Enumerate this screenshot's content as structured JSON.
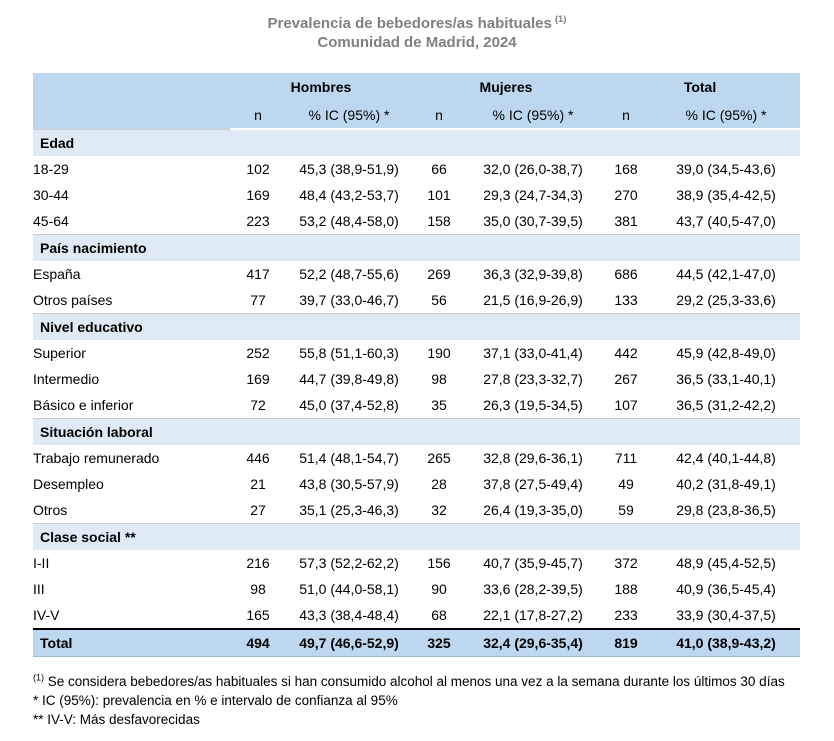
{
  "title": {
    "line1": "Prevalencia de bebedores/as habituales",
    "line1_superscript": "(1)",
    "line2": "Comunidad de Madrid, 2024"
  },
  "colors": {
    "header_blue": "#bdd7ee",
    "section_blue": "#deeaf6",
    "title_gray": "#808080"
  },
  "table": {
    "group_headers": {
      "hombres": "Hombres",
      "mujeres": "Mujeres",
      "total": "Total"
    },
    "sub_headers": {
      "n": "n",
      "pct": "% IC (95%) *"
    },
    "sections": [
      {
        "label": "Edad",
        "rows": [
          {
            "label": "18-29",
            "values": [
              "102",
              "45,3 (38,9-51,9)",
              "66",
              "32,0 (26,0-38,7)",
              "168",
              "39,0 (34,5-43,6)"
            ]
          },
          {
            "label": "30-44",
            "values": [
              "169",
              "48,4 (43,2-53,7)",
              "101",
              "29,3 (24,7-34,3)",
              "270",
              "38,9 (35,4-42,5)"
            ]
          },
          {
            "label": "45-64",
            "values": [
              "223",
              "53,2 (48,4-58,0)",
              "158",
              "35,0 (30,7-39,5)",
              "381",
              "43,7 (40,5-47,0)"
            ]
          }
        ]
      },
      {
        "label": "País nacimiento",
        "rows": [
          {
            "label": "España",
            "values": [
              "417",
              "52,2 (48,7-55,6)",
              "269",
              "36,3 (32,9-39,8)",
              "686",
              "44,5 (42,1-47,0)"
            ]
          },
          {
            "label": "Otros países",
            "values": [
              "77",
              "39,7 (33,0-46,7)",
              "56",
              "21,5 (16,9-26,9)",
              "133",
              "29,2 (25,3-33,6)"
            ]
          }
        ]
      },
      {
        "label": "Nivel educativo",
        "rows": [
          {
            "label": "Superior",
            "values": [
              "252",
              "55,8 (51,1-60,3)",
              "190",
              "37,1 (33,0-41,4)",
              "442",
              "45,9 (42,8-49,0)"
            ]
          },
          {
            "label": "Intermedio",
            "values": [
              "169",
              "44,7 (39,8-49,8)",
              "98",
              "27,8 (23,3-32,7)",
              "267",
              "36,5 (33,1-40,1)"
            ]
          },
          {
            "label": "Básico e inferior",
            "values": [
              "72",
              "45,0 (37,4-52,8)",
              "35",
              "26,3 (19,5-34,5)",
              "107",
              "36,5 (31,2-42,2)"
            ]
          }
        ]
      },
      {
        "label": "Situación laboral",
        "rows": [
          {
            "label": "Trabajo remunerado",
            "values": [
              "446",
              "51,4 (48,1-54,7)",
              "265",
              "32,8 (29,6-36,1)",
              "711",
              "42,4 (40,1-44,8)"
            ]
          },
          {
            "label": "Desempleo",
            "values": [
              "21",
              "43,8 (30,5-57,9)",
              "28",
              "37,8 (27,5-49,4)",
              "49",
              "40,2 (31,8-49,1)"
            ]
          },
          {
            "label": "Otros",
            "values": [
              "27",
              "35,1 (25,3-46,3)",
              "32",
              "26,4 (19,3-35,0)",
              "59",
              "29,8 (23,8-36,5)"
            ]
          }
        ]
      },
      {
        "label": "Clase social **",
        "rows": [
          {
            "label": "I-II",
            "values": [
              "216",
              "57,3 (52,2-62,2)",
              "156",
              "40,7 (35,9-45,7)",
              "372",
              "48,9 (45,4-52,5)"
            ]
          },
          {
            "label": "III",
            "values": [
              "98",
              "51,0 (44,0-58,1)",
              "90",
              "33,6 (28,2-39,5)",
              "188",
              "40,9 (36,5-45,4)"
            ]
          },
          {
            "label": "IV-V",
            "values": [
              "165",
              "43,3 (38,4-48,4)",
              "68",
              "22,1 (17,8-27,2)",
              "233",
              "33,9 (30,4-37,5)"
            ]
          }
        ]
      }
    ],
    "total_row": {
      "label": "Total",
      "values": [
        "494",
        "49,7 (46,6-52,9)",
        "325",
        "32,4 (29,6-35,4)",
        "819",
        "41,0 (38,9-43,2)"
      ]
    }
  },
  "footnotes": {
    "note1_marker": "(1)",
    "note1_text": " Se considera bebedores/as habituales si han consumido alcohol al menos una vez a la semana durante los últimos 30 días",
    "note2": "* IC (95%): prevalencia en % e intervalo de confianza al 95%",
    "note3": "** IV-V: Más desfavorecidas"
  }
}
